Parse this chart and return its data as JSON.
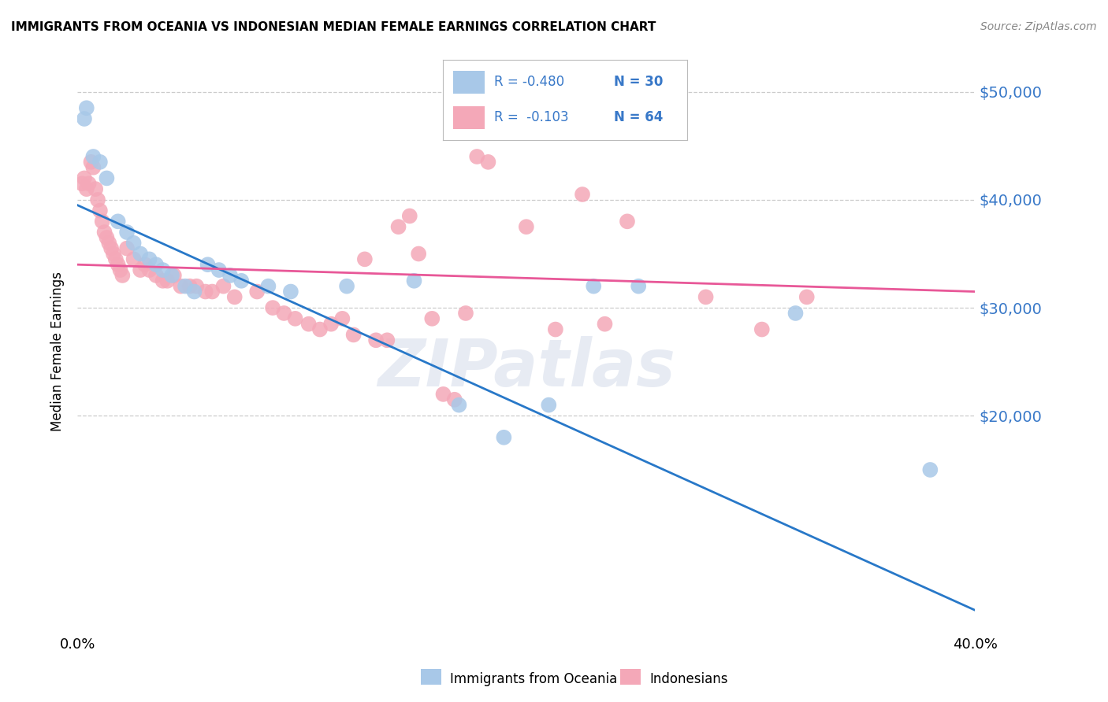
{
  "title": "IMMIGRANTS FROM OCEANIA VS INDONESIAN MEDIAN FEMALE EARNINGS CORRELATION CHART",
  "source": "Source: ZipAtlas.com",
  "ylabel": "Median Female Earnings",
  "yaxis_labels": [
    "$50,000",
    "$40,000",
    "$30,000",
    "$20,000"
  ],
  "yaxis_values": [
    50000,
    40000,
    30000,
    20000
  ],
  "legend_blue_R": "R = -0.480",
  "legend_blue_N": "N = 30",
  "legend_pink_R": "R =  -0.103",
  "legend_pink_N": "N = 64",
  "blue_color": "#a8c8e8",
  "pink_color": "#f4a8b8",
  "trend_blue_color": "#2878c8",
  "trend_pink_color": "#e85898",
  "label_color": "#3878c8",
  "watermark": "ZIPatlas",
  "blue_scatter": [
    [
      0.003,
      47500
    ],
    [
      0.004,
      48500
    ],
    [
      0.007,
      44000
    ],
    [
      0.01,
      43500
    ],
    [
      0.013,
      42000
    ],
    [
      0.018,
      38000
    ],
    [
      0.022,
      37000
    ],
    [
      0.025,
      36000
    ],
    [
      0.028,
      35000
    ],
    [
      0.032,
      34500
    ],
    [
      0.035,
      34000
    ],
    [
      0.038,
      33500
    ],
    [
      0.042,
      33000
    ],
    [
      0.048,
      32000
    ],
    [
      0.052,
      31500
    ],
    [
      0.058,
      34000
    ],
    [
      0.063,
      33500
    ],
    [
      0.068,
      33000
    ],
    [
      0.073,
      32500
    ],
    [
      0.085,
      32000
    ],
    [
      0.095,
      31500
    ],
    [
      0.12,
      32000
    ],
    [
      0.15,
      32500
    ],
    [
      0.17,
      21000
    ],
    [
      0.19,
      18000
    ],
    [
      0.21,
      21000
    ],
    [
      0.23,
      32000
    ],
    [
      0.25,
      32000
    ],
    [
      0.32,
      29500
    ],
    [
      0.38,
      15000
    ]
  ],
  "pink_scatter": [
    [
      0.002,
      41500
    ],
    [
      0.003,
      42000
    ],
    [
      0.004,
      41000
    ],
    [
      0.005,
      41500
    ],
    [
      0.006,
      43500
    ],
    [
      0.007,
      43000
    ],
    [
      0.008,
      41000
    ],
    [
      0.009,
      40000
    ],
    [
      0.01,
      39000
    ],
    [
      0.011,
      38000
    ],
    [
      0.012,
      37000
    ],
    [
      0.013,
      36500
    ],
    [
      0.014,
      36000
    ],
    [
      0.015,
      35500
    ],
    [
      0.016,
      35000
    ],
    [
      0.017,
      34500
    ],
    [
      0.018,
      34000
    ],
    [
      0.019,
      33500
    ],
    [
      0.02,
      33000
    ],
    [
      0.022,
      35500
    ],
    [
      0.025,
      34500
    ],
    [
      0.028,
      33500
    ],
    [
      0.03,
      34000
    ],
    [
      0.032,
      33500
    ],
    [
      0.035,
      33000
    ],
    [
      0.038,
      32500
    ],
    [
      0.04,
      32500
    ],
    [
      0.043,
      33000
    ],
    [
      0.046,
      32000
    ],
    [
      0.05,
      32000
    ],
    [
      0.053,
      32000
    ],
    [
      0.057,
      31500
    ],
    [
      0.06,
      31500
    ],
    [
      0.065,
      32000
    ],
    [
      0.07,
      31000
    ],
    [
      0.08,
      31500
    ],
    [
      0.087,
      30000
    ],
    [
      0.092,
      29500
    ],
    [
      0.097,
      29000
    ],
    [
      0.103,
      28500
    ],
    [
      0.108,
      28000
    ],
    [
      0.113,
      28500
    ],
    [
      0.118,
      29000
    ],
    [
      0.123,
      27500
    ],
    [
      0.128,
      34500
    ],
    [
      0.133,
      27000
    ],
    [
      0.138,
      27000
    ],
    [
      0.143,
      37500
    ],
    [
      0.148,
      38500
    ],
    [
      0.152,
      35000
    ],
    [
      0.158,
      29000
    ],
    [
      0.163,
      22000
    ],
    [
      0.168,
      21500
    ],
    [
      0.173,
      29500
    ],
    [
      0.178,
      44000
    ],
    [
      0.183,
      43500
    ],
    [
      0.2,
      37500
    ],
    [
      0.213,
      28000
    ],
    [
      0.225,
      40500
    ],
    [
      0.235,
      28500
    ],
    [
      0.245,
      38000
    ],
    [
      0.28,
      31000
    ],
    [
      0.305,
      28000
    ],
    [
      0.325,
      31000
    ]
  ],
  "xlim": [
    0.0,
    0.4
  ],
  "ylim": [
    0,
    52000
  ],
  "blue_trend_x": [
    0.0,
    0.4
  ],
  "blue_trend_y": [
    39500,
    2000
  ],
  "pink_trend_x": [
    0.0,
    0.4
  ],
  "pink_trend_y": [
    34000,
    31500
  ],
  "grid_color": "#cccccc",
  "grid_style": "--",
  "xtick_positions": [
    0.0,
    0.08,
    0.16,
    0.24,
    0.32,
    0.4
  ],
  "xtick_labels": [
    "0.0%",
    "",
    "",
    "",
    "",
    "40.0%"
  ]
}
